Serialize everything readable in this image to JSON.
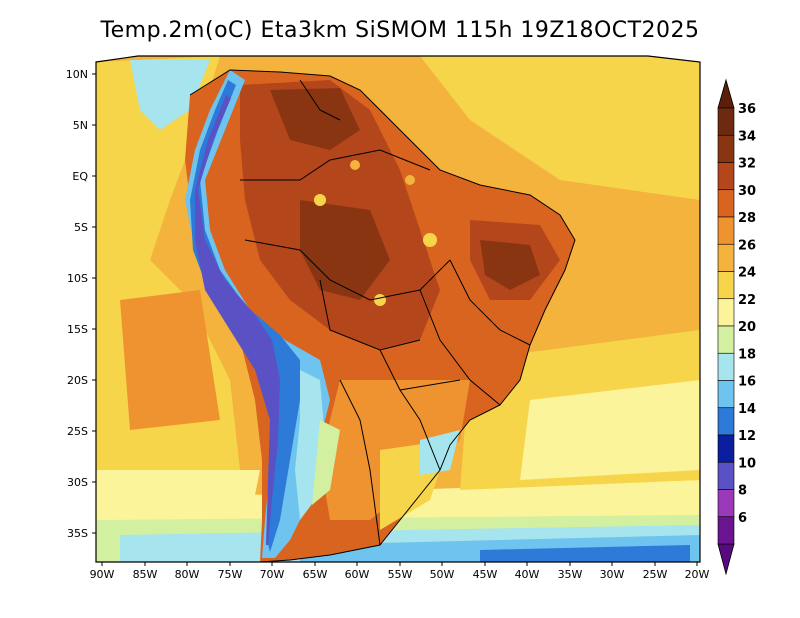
{
  "title": "Temp.2m(oC) Eta3km SiSMOM 115h 19Z18OCT2025",
  "map": {
    "lat_labels": [
      "10N",
      "5N",
      "EQ",
      "5S",
      "10S",
      "15S",
      "20S",
      "25S",
      "30S",
      "35S"
    ],
    "lon_labels": [
      "90W",
      "85W",
      "80W",
      "75W",
      "70W",
      "65W",
      "60W",
      "55W",
      "50W",
      "45W",
      "40W",
      "35W",
      "30W",
      "25W",
      "20W"
    ]
  },
  "colorbar": {
    "labels": [
      "36",
      "34",
      "32",
      "30",
      "28",
      "26",
      "24",
      "22",
      "20",
      "18",
      "16",
      "14",
      "12",
      "10",
      "8",
      "6"
    ],
    "colors": [
      "#6e2a10",
      "#8a3512",
      "#b4461c",
      "#d96420",
      "#ef9330",
      "#f3b33c",
      "#f7d54a",
      "#fbf49a",
      "#d2f0a0",
      "#a6e4ee",
      "#6ec4ee",
      "#2d7ad8",
      "#0a1ea0",
      "#5a52c4",
      "#9a3ab8",
      "#6a1490"
    ]
  }
}
